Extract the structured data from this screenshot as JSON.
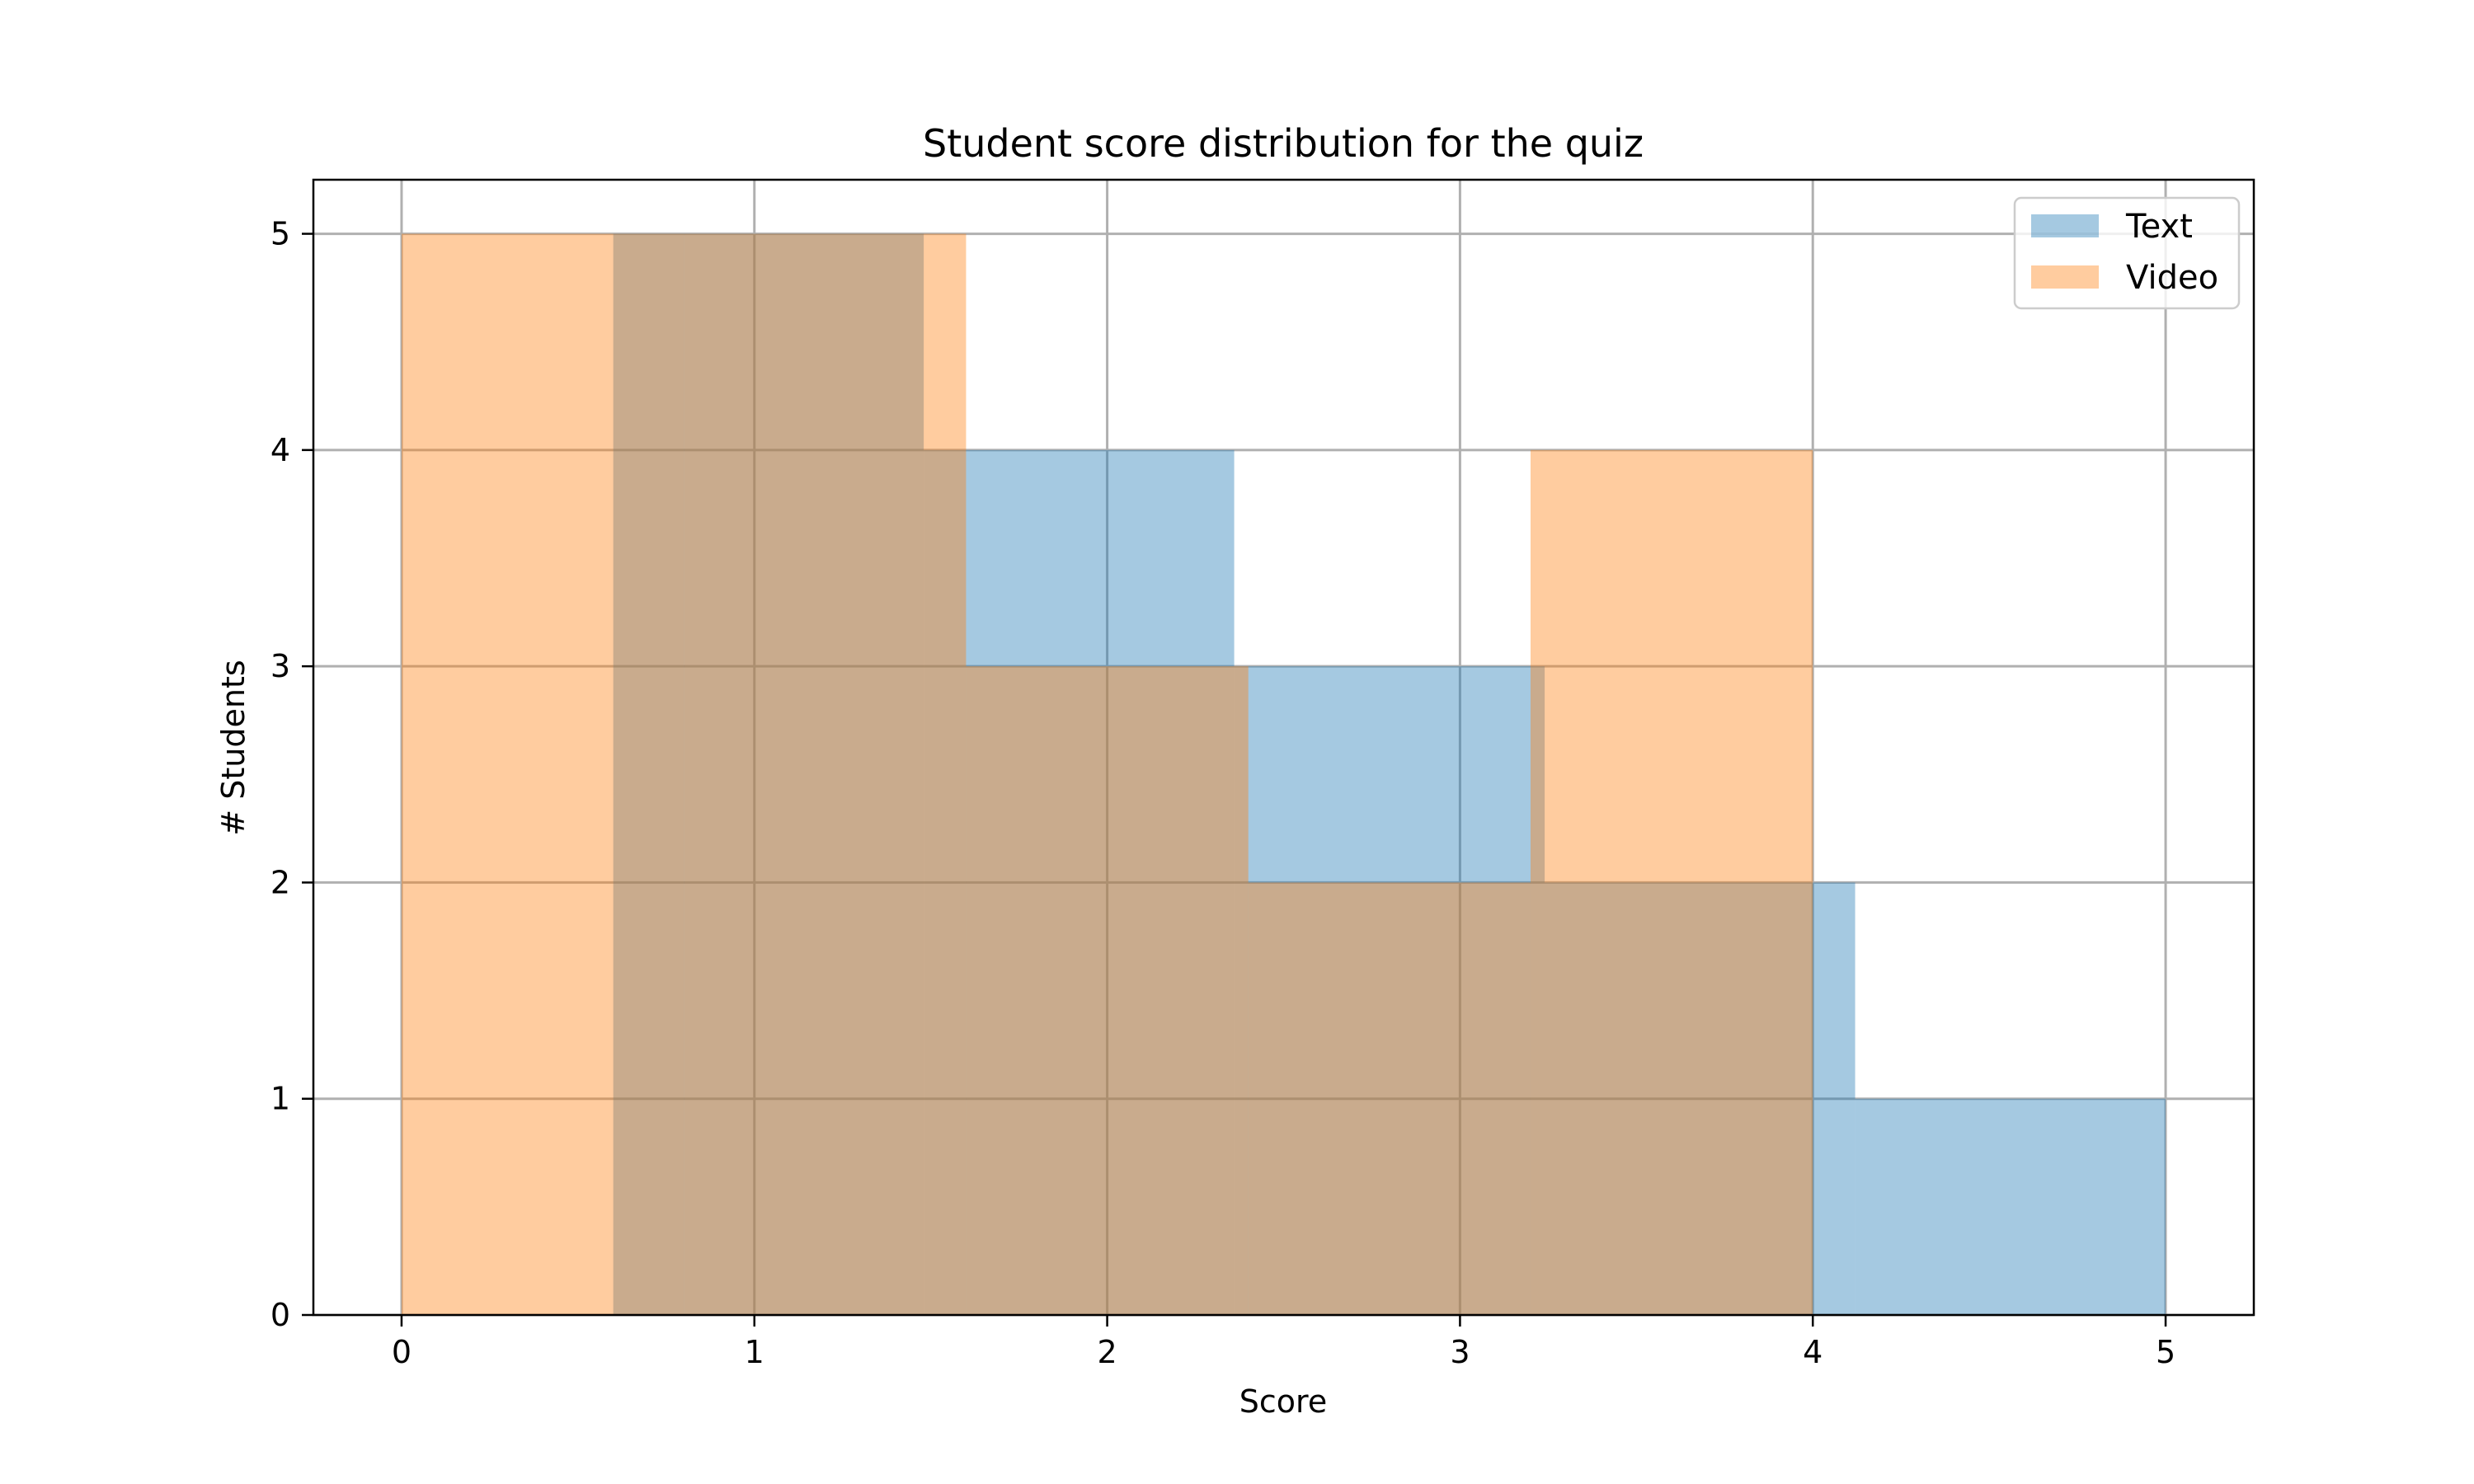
{
  "chart_data": {
    "type": "bar",
    "title": "Student score distribution for the quiz",
    "xlabel": "Score",
    "ylabel": "# Students",
    "xlim": [
      -0.25,
      5.25
    ],
    "ylim": [
      0,
      5.25
    ],
    "x_ticks": [
      "0",
      "1",
      "2",
      "3",
      "4",
      "5"
    ],
    "y_ticks": [
      "0",
      "1",
      "2",
      "3",
      "4",
      "5"
    ],
    "grid": true,
    "legend_position": "top-right",
    "series": [
      {
        "name": "Text",
        "color": "#1f77b4",
        "opacity": 0.4,
        "bins": [
          {
            "x0": 0.6,
            "x1": 1.48,
            "count": 5
          },
          {
            "x0": 1.48,
            "x1": 2.36,
            "count": 4
          },
          {
            "x0": 2.36,
            "x1": 3.24,
            "count": 3
          },
          {
            "x0": 3.24,
            "x1": 4.12,
            "count": 2
          },
          {
            "x0": 4.12,
            "x1": 5.0,
            "count": 1
          }
        ]
      },
      {
        "name": "Video",
        "color": "#ff7f0e",
        "opacity": 0.4,
        "bins": [
          {
            "x0": 0.0,
            "x1": 0.8,
            "count": 5
          },
          {
            "x0": 0.8,
            "x1": 1.6,
            "count": 5
          },
          {
            "x0": 1.6,
            "x1": 2.4,
            "count": 3
          },
          {
            "x0": 2.4,
            "x1": 3.2,
            "count": 2
          },
          {
            "x0": 3.2,
            "x1": 4.0,
            "count": 4
          }
        ]
      }
    ]
  }
}
